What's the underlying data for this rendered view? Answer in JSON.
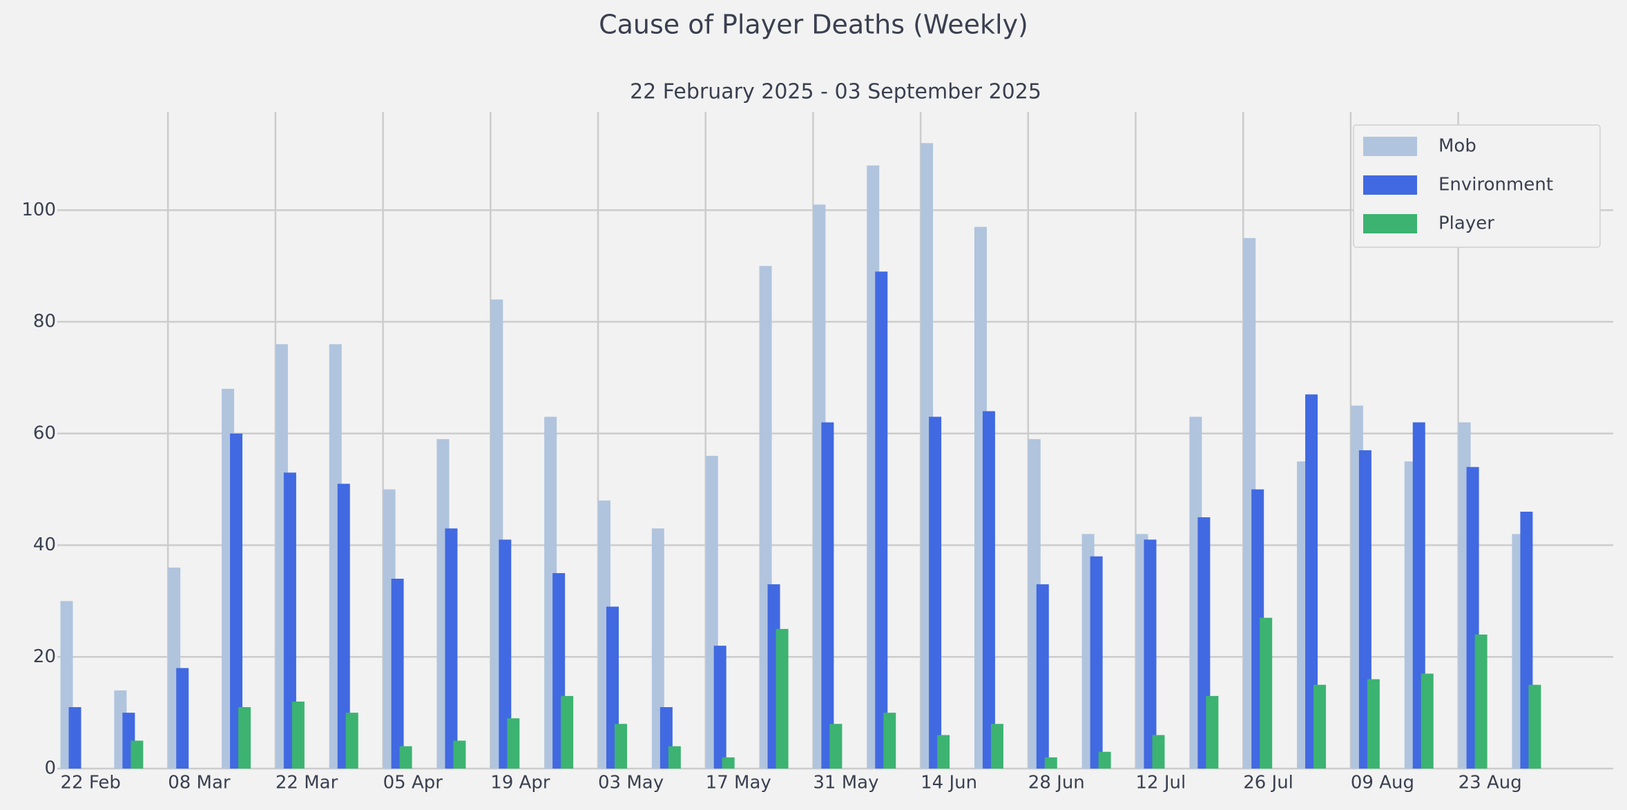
{
  "chart_data": {
    "type": "bar",
    "title": "Cause of Player Deaths (Weekly)",
    "subtitle": "22 February 2025 - 03 September 2025",
    "categories": [
      "22 Feb",
      null,
      "08 Mar",
      null,
      "22 Mar",
      null,
      "05 Apr",
      null,
      "19 Apr",
      null,
      "03 May",
      null,
      "17 May",
      null,
      "31 May",
      null,
      "14 Jun",
      null,
      "28 Jun",
      null,
      "12 Jul",
      null,
      "26 Jul",
      null,
      "09 Aug",
      null,
      "23 Aug",
      null
    ],
    "series": [
      {
        "name": "Mob",
        "color": "#b0c4de",
        "values": [
          30,
          14,
          36,
          68,
          76,
          76,
          50,
          59,
          84,
          63,
          48,
          43,
          56,
          90,
          101,
          108,
          112,
          97,
          59,
          42,
          42,
          63,
          95,
          55,
          65,
          55,
          62,
          42
        ]
      },
      {
        "name": "Environment",
        "color": "#4169e1",
        "values": [
          11,
          10,
          18,
          60,
          53,
          51,
          34,
          43,
          41,
          35,
          29,
          11,
          22,
          33,
          62,
          89,
          63,
          64,
          33,
          38,
          41,
          45,
          50,
          67,
          57,
          62,
          54,
          46
        ]
      },
      {
        "name": "Player",
        "color": "#3cb371",
        "values": [
          0,
          5,
          0,
          11,
          12,
          10,
          4,
          5,
          9,
          13,
          8,
          4,
          2,
          25,
          8,
          10,
          6,
          8,
          2,
          3,
          6,
          13,
          27,
          15,
          16,
          17,
          24,
          15
        ]
      }
    ],
    "ylim": [
      0,
      117.6
    ],
    "yticks": [
      0,
      20,
      40,
      60,
      80,
      100
    ],
    "grid": true,
    "legend": "upper right"
  }
}
